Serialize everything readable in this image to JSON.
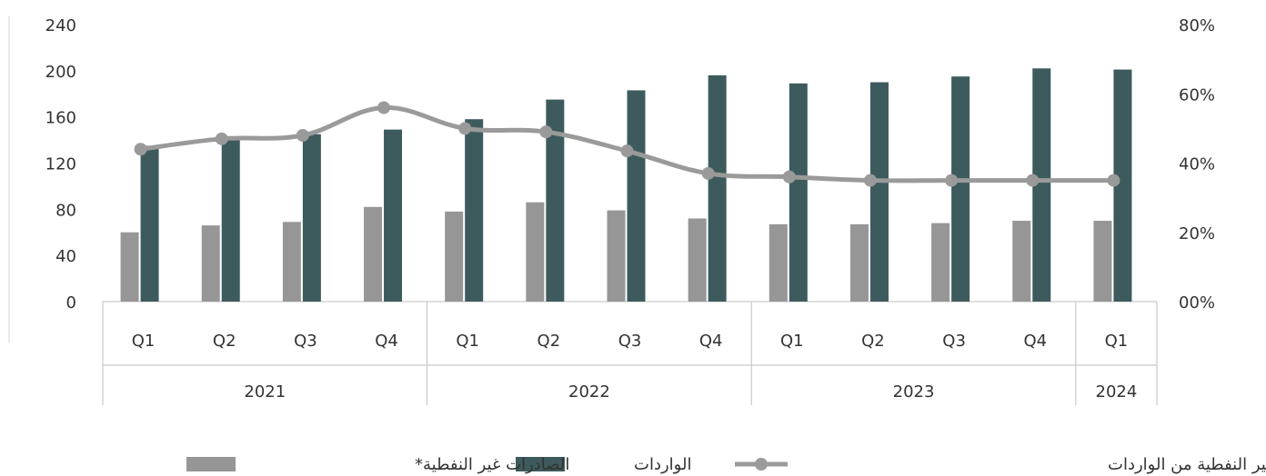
{
  "chart_data": {
    "type": "bar",
    "categories": [
      "Q1",
      "Q2",
      "Q3",
      "Q4",
      "Q1",
      "Q2",
      "Q3",
      "Q4",
      "Q1",
      "Q2",
      "Q3",
      "Q4",
      "Q1"
    ],
    "groups": [
      {
        "label": "2021",
        "count": 4
      },
      {
        "label": "2022",
        "count": 4
      },
      {
        "label": "2023",
        "count": 4
      },
      {
        "label": "2024",
        "count": 1
      }
    ],
    "series": [
      {
        "name": "الصادرات غير النفطية*",
        "type": "bar",
        "axis": "left",
        "color": "#969696",
        "values": [
          60,
          66,
          69,
          82,
          78,
          86,
          79,
          72,
          67,
          67,
          68,
          70,
          70
        ]
      },
      {
        "name": "الواردات",
        "type": "bar",
        "axis": "left",
        "color": "#3d5b5c",
        "values": [
          135,
          141,
          145,
          149,
          158,
          175,
          183,
          196,
          189,
          190,
          195,
          202,
          201
        ]
      },
      {
        "name": "نسبة الصادرات غير النفطية من الواردات",
        "type": "line",
        "axis": "right",
        "color": "#9a9a9a",
        "values": [
          44,
          47,
          48,
          56,
          50,
          49,
          43.5,
          37,
          36,
          35,
          35,
          35,
          35
        ]
      }
    ],
    "y_left": {
      "min": 0,
      "max": 240,
      "ticks": [
        0,
        40,
        80,
        120,
        160,
        200,
        240
      ]
    },
    "y_right": {
      "min": 0,
      "max": 80,
      "ticks": [
        "00%",
        "20%",
        "40%",
        "60%",
        "80%"
      ]
    },
    "legend_position": "bottom",
    "grid": false
  }
}
